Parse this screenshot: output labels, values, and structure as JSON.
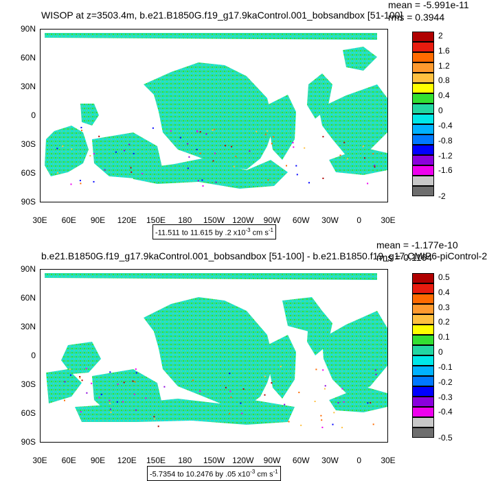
{
  "panels": [
    {
      "title": "WISOP at z=3503.4m, b.e21.B1850G.f19_g17.9kaControl.001_bobsandbox [51-100]",
      "mean": "mean = -5.991e-11",
      "rms": "rms = 0.3944",
      "range_text": "-11.511 to 11.615 by .2 x10",
      "range_exp": "-3",
      "range_units": " cm s",
      "range_units_exp": "-1",
      "colorbar_labels": [
        "2",
        "1.6",
        "1.2",
        "0.8",
        "0.4",
        "0",
        "-0.4",
        "-0.8",
        "-1.2",
        "-1.6",
        "-2"
      ]
    },
    {
      "title": "b.e21.B1850G.f19_g17.9kaControl.001_bobsandbox [51-100] - b.e21.B1850.f19_g17.CMIP6-piControl-2",
      "mean": "mean = -1.177e-10",
      "rms": "rms = 0.1164",
      "range_text": "-5.7354 to 10.2476 by .05 x10",
      "range_exp": "-3",
      "range_units": " cm s",
      "range_units_exp": "-1",
      "colorbar_labels": [
        "0.5",
        "0.4",
        "0.3",
        "0.2",
        "0.1",
        "0",
        "-0.1",
        "-0.2",
        "-0.3",
        "-0.4",
        "-0.5"
      ]
    }
  ],
  "lat_labels": [
    "90N",
    "60N",
    "30N",
    "0",
    "30S",
    "60S",
    "90S"
  ],
  "lon_labels": [
    "30E",
    "60E",
    "90E",
    "120E",
    "150E",
    "180",
    "150W",
    "120W",
    "90W",
    "60W",
    "30W",
    "0",
    "30E"
  ],
  "colors": {
    "palette": [
      "#b00000",
      "#e81c0f",
      "#ff6a00",
      "#ff9a2e",
      "#ffc040",
      "#ffff00",
      "#33e032",
      "#22d7a2",
      "#00e8e8",
      "#00b2ff",
      "#0078ff",
      "#0000ff",
      "#8a00dd",
      "#ee00ee",
      "#c8c8c8",
      "#6e6e6e"
    ],
    "ocean_fill": "#2ce0b0",
    "ocean_alt": "#44d6c4"
  },
  "chart_data": [
    {
      "type": "heatmap",
      "title": "WISOP at z=3503.4m, b.e21.B1850G.f19_g17.9kaControl.001_bobsandbox [51-100]",
      "lon_range": [
        "30E",
        "30E"
      ],
      "lat_range": [
        "90S",
        "90N"
      ],
      "min": -11.511,
      "max": 11.615,
      "contour_interval": 0.2,
      "units": "x10^-3 cm s^-1",
      "mean": -5.991e-11,
      "rms": 0.3944,
      "levels": [
        -2,
        -1.6,
        -1.2,
        -0.8,
        -0.4,
        0,
        0.4,
        0.8,
        1.2,
        1.6,
        2
      ]
    },
    {
      "type": "heatmap",
      "title": "b.e21.B1850G.f19_g17.9kaControl.001_bobsandbox [51-100] - b.e21.B1850.f19_g17.CMIP6-piControl-2",
      "lon_range": [
        "30E",
        "30E"
      ],
      "lat_range": [
        "90S",
        "90N"
      ],
      "min": -5.7354,
      "max": 10.2476,
      "contour_interval": 0.05,
      "units": "x10^-3 cm s^-1",
      "mean": -1.177e-10,
      "rms": 0.1164,
      "levels": [
        -0.5,
        -0.4,
        -0.3,
        -0.2,
        -0.1,
        0,
        0.1,
        0.2,
        0.3,
        0.4,
        0.5
      ]
    }
  ]
}
